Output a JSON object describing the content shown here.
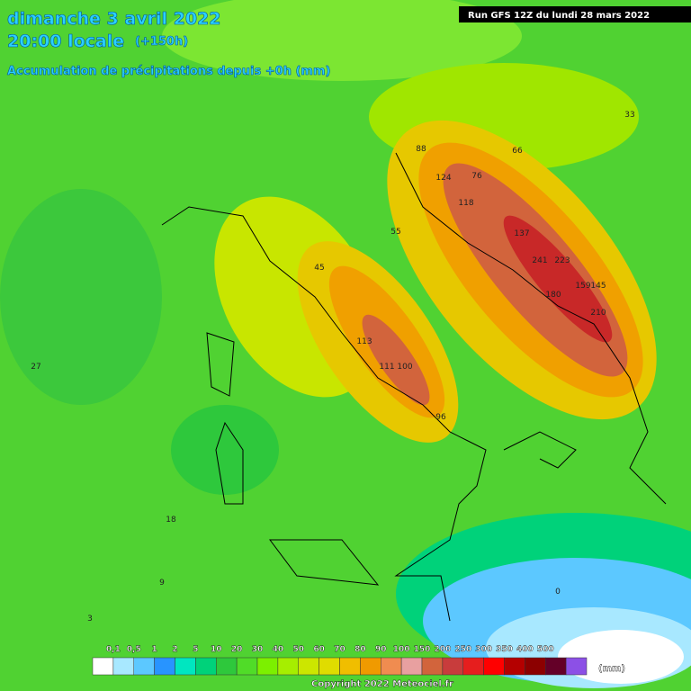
{
  "header": {
    "date": "dimanche 3 avril 2022",
    "time": "20:00 locale",
    "lead": "(+150h)",
    "product": "Accumulation de précipitations depuis +0h (mm)",
    "run": "Run GFS 12Z du lundi 28 mars 2022"
  },
  "legend": {
    "labels": [
      "0,1",
      "0,5",
      "1",
      "2",
      "5",
      "10",
      "20",
      "30",
      "40",
      "50",
      "60",
      "70",
      "80",
      "90",
      "100",
      "150",
      "200",
      "250",
      "300",
      "350",
      "400",
      "500"
    ],
    "colors": [
      "#ffffff",
      "#a8e8ff",
      "#5cc8ff",
      "#2894ff",
      "#00e6c0",
      "#00d27a",
      "#2ec83c",
      "#50dc28",
      "#7cf000",
      "#a6ee00",
      "#cce600",
      "#e0dc00",
      "#f0be00",
      "#f09a00",
      "#f08c50",
      "#e8a0a0",
      "#d2643c",
      "#c83c3c",
      "#e61e1e",
      "#ff0000",
      "#b40000",
      "#8c0000",
      "#640028",
      "#8c50e6"
    ],
    "unit": "(mm)"
  },
  "map_labels": [
    "241",
    "223",
    "210",
    "180",
    "159",
    "145",
    "137",
    "124",
    "118",
    "113",
    "111",
    "100",
    "96",
    "88",
    "76",
    "66",
    "55",
    "45",
    "33",
    "27",
    "18",
    "9",
    "3",
    "0"
  ],
  "footer": "Copyright 2022 Meteociel.fr"
}
